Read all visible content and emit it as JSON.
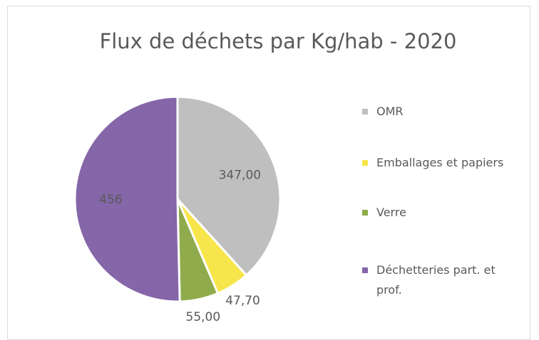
{
  "chart_data": {
    "type": "pie",
    "title": "Flux de déchets par Kg/hab - 2020",
    "categories": [
      "OMR",
      "Emballages et papiers",
      "Verre",
      "Déchetteries part. et prof."
    ],
    "values": [
      347,
      47.7,
      55,
      456
    ],
    "value_labels": [
      "347,00",
      "47,70",
      "55,00",
      "456"
    ],
    "colors": [
      "#bfbfbf",
      "#f7e64b",
      "#8fab4c",
      "#8566a8"
    ],
    "legend": "right"
  }
}
